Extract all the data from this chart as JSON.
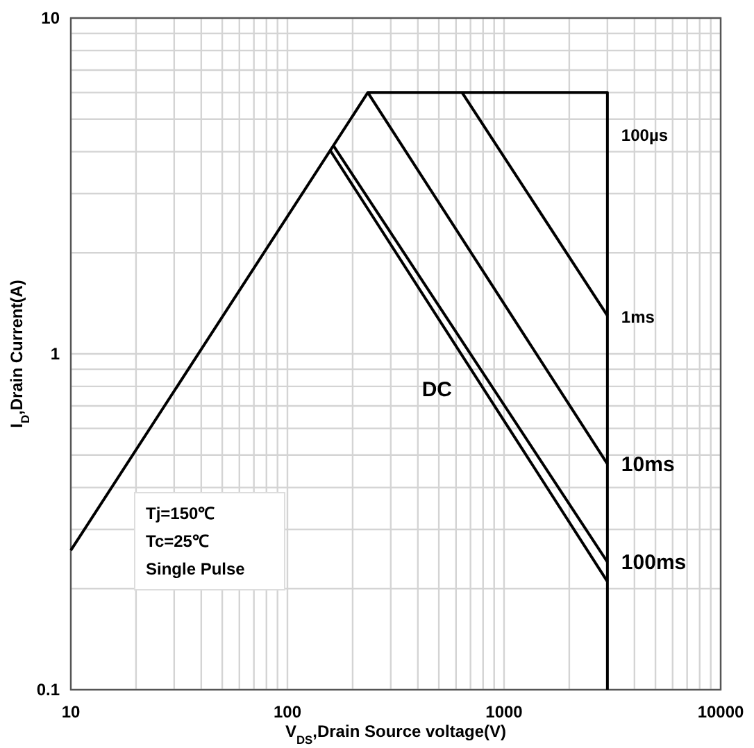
{
  "chart_data": {
    "type": "line",
    "xlabel": "V$_{DS}$,Drain Source voltage(V)",
    "ylabel": "I$_{D}$,Drain Current(A)",
    "log": "xy",
    "xlim": [
      10,
      10000
    ],
    "xticks": [
      10,
      100,
      1000,
      10000
    ],
    "ylim": [
      0.1,
      10
    ],
    "yticks": [
      0.1,
      1,
      10
    ],
    "grid": true,
    "line_style": "solid",
    "annotations": [
      "Tj=150℃",
      "Tc=25℃",
      "Single Pulse"
    ],
    "series": [
      {
        "name": "100µs",
        "color": "#000000",
        "x": [
          10,
          235,
          3000,
          3000
        ],
        "values": [
          0.26,
          6,
          6,
          0.1
        ]
      },
      {
        "name": "1ms",
        "color": "#000000",
        "x": [
          640,
          3000
        ],
        "values": [
          6,
          1.3
        ]
      },
      {
        "name": "10ms",
        "color": "#000000",
        "x": [
          235,
          3000
        ],
        "values": [
          6,
          0.47
        ]
      },
      {
        "name": "100ms",
        "color": "#000000",
        "x": [
          163,
          3000
        ],
        "values": [
          4.17,
          0.24
        ]
      },
      {
        "name": "DC",
        "color": "#000000",
        "x": [
          157,
          3000
        ],
        "values": [
          4.05,
          0.21
        ]
      }
    ]
  }
}
